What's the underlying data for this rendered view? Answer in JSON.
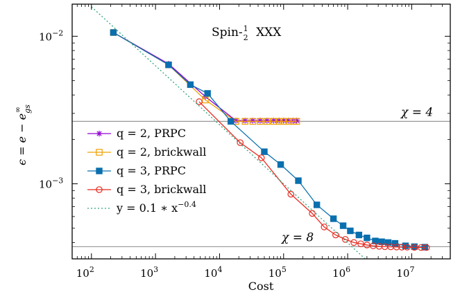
{
  "chart_data": {
    "type": "line",
    "title": "Spin-½ XXX",
    "xlabel": "Cost",
    "ylabel": "ϵ = e − e∞gs",
    "xscale": "log",
    "yscale": "log",
    "xlim": [
      50,
      40000000
    ],
    "ylim": [
      0.00031,
      0.0165
    ],
    "x_ticks": [
      100,
      1000,
      10000,
      100000,
      1000000,
      10000000
    ],
    "x_tick_labels": [
      {
        "base": "10",
        "exp": "2"
      },
      {
        "base": "10",
        "exp": "3"
      },
      {
        "base": "10",
        "exp": "4"
      },
      {
        "base": "10",
        "exp": "5"
      },
      {
        "base": "10",
        "exp": "6"
      },
      {
        "base": "10",
        "exp": "7"
      }
    ],
    "y_ticks": [
      0.001,
      0.01
    ],
    "y_tick_labels": [
      {
        "base": "10",
        "exp": "−3"
      },
      {
        "base": "10",
        "exp": "−2"
      }
    ],
    "grid": false,
    "legend_position": "left",
    "hlines": [
      {
        "y": 0.00265,
        "label": "χ = 4",
        "color": "#8a8a8a"
      },
      {
        "y": 0.000375,
        "label": "χ = 8",
        "color": "#8a8a8a"
      }
    ],
    "series": [
      {
        "name": "q = 2, PRPC",
        "color": "#9400d3",
        "marker": "star",
        "x": [
          220,
          1600,
          6000,
          18000,
          25000,
          33000,
          43000,
          55000,
          70000,
          85000,
          100000,
          120000,
          140000,
          160000
        ],
        "y": [
          0.0106,
          0.0065,
          0.0039,
          0.00268,
          0.00268,
          0.00268,
          0.00268,
          0.00268,
          0.00268,
          0.00268,
          0.00268,
          0.00268,
          0.00268,
          0.00268
        ]
      },
      {
        "name": "q = 2, brickwall",
        "color": "#f0a000",
        "marker": "square-open",
        "x": [
          220,
          1600,
          6000,
          18000,
          25000,
          33000,
          43000,
          55000,
          70000,
          85000,
          100000,
          120000,
          140000,
          160000
        ],
        "y": [
          0.0106,
          0.0064,
          0.0037,
          0.00265,
          0.00265,
          0.00265,
          0.00265,
          0.00265,
          0.00265,
          0.00265,
          0.00265,
          0.00265,
          0.00265,
          0.00265
        ]
      },
      {
        "name": "q = 3, PRPC",
        "color": "#0a6fae",
        "marker": "square-filled",
        "x": [
          220,
          1600,
          3500,
          6500,
          15000,
          50000,
          90000,
          170000,
          330000,
          600000,
          850000,
          1100000,
          1500000,
          2000000,
          2700000,
          3400000,
          4300000,
          5500000,
          8000000,
          11000000,
          16000000
        ],
        "y": [
          0.0106,
          0.0064,
          0.0047,
          0.0041,
          0.00265,
          0.00165,
          0.00135,
          0.00105,
          0.00072,
          0.00058,
          0.00052,
          0.00048,
          0.00045,
          0.00043,
          0.00041,
          0.000405,
          0.0004,
          0.000395,
          0.00038,
          0.000375,
          0.000372
        ]
      },
      {
        "name": "q = 3, brickwall",
        "color": "#e8281e",
        "marker": "circle-open",
        "x": [
          4800,
          21000,
          45000,
          130000,
          280000,
          430000,
          650000,
          920000,
          1250000,
          1600000,
          2000000,
          2500000,
          3100000,
          3800000,
          4700000,
          5800000,
          7000000,
          8500000,
          11000000,
          14000000,
          17000000
        ],
        "y": [
          0.0036,
          0.0019,
          0.0015,
          0.00085,
          0.00063,
          0.00051,
          0.00045,
          0.00042,
          0.0004,
          0.000392,
          0.000385,
          0.00038,
          0.000377,
          0.000375,
          0.000374,
          0.000373,
          0.000372,
          0.000372,
          0.000371,
          0.00037,
          0.00037
        ]
      },
      {
        "name": "y = 0.1 ∗ x^−0.4",
        "color": "#2aa37a",
        "marker": "none",
        "dashed": true,
        "formula": {
          "a": 0.1,
          "b": -0.4
        },
        "x": [
          100,
          3000000
        ],
        "y": [
          0.01585,
          0.000258
        ]
      }
    ]
  }
}
